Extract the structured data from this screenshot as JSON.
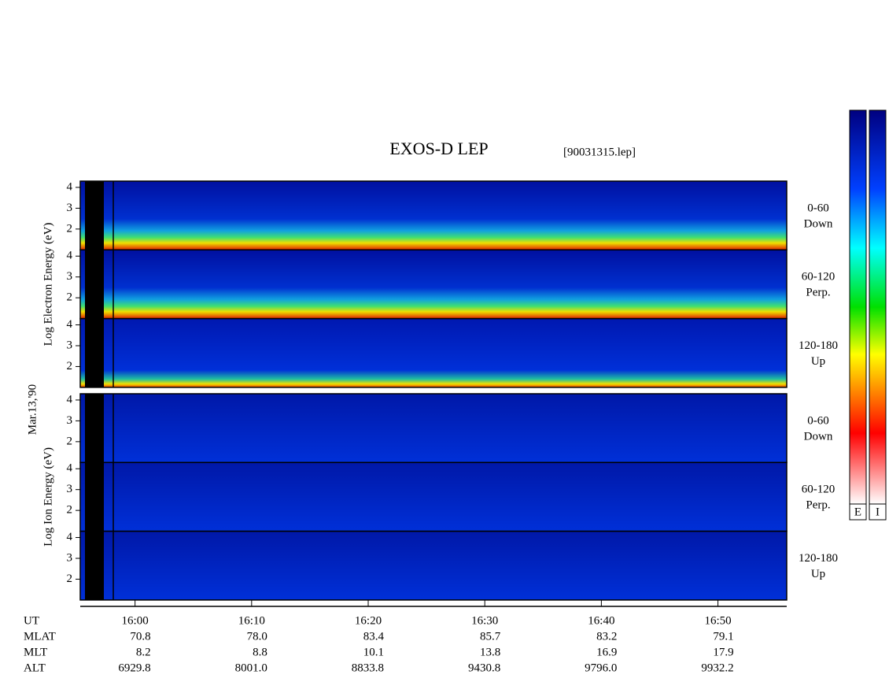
{
  "title": "EXOS-D LEP",
  "file": "[90031315.lep]",
  "date": "Mar.13,'90",
  "colorbars": [
    "E",
    "I"
  ],
  "chart_data": [
    {
      "type": "spectrogram",
      "ylabel": "Log  Electron  Energy (eV)",
      "panels": [
        {
          "label": [
            "0-60",
            "Down"
          ]
        },
        {
          "label": [
            "60-120",
            "Perp."
          ]
        },
        {
          "label": [
            "120-180",
            "Up"
          ]
        }
      ],
      "ylim": [
        1,
        4.3
      ],
      "yticks": [
        2,
        3,
        4
      ]
    },
    {
      "type": "spectrogram",
      "ylabel": "Log  Ion  Energy (eV)",
      "panels": [
        {
          "label": [
            "0-60",
            "Down"
          ]
        },
        {
          "label": [
            "60-120",
            "Perp."
          ]
        },
        {
          "label": [
            "120-180",
            "Up"
          ]
        }
      ],
      "ylim": [
        1,
        4.3
      ],
      "yticks": [
        2,
        3,
        4
      ]
    }
  ],
  "xlim": [
    955.3,
    1015.9
  ],
  "xticks": [
    {
      "value": 960,
      "label": "16:00"
    },
    {
      "value": 970,
      "label": "16:10"
    },
    {
      "value": 980,
      "label": "16:20"
    },
    {
      "value": 990,
      "label": "16:30"
    },
    {
      "value": 1000,
      "label": "16:40"
    },
    {
      "value": 1010,
      "label": "16:50"
    }
  ],
  "orbit_table": {
    "row_labels": [
      "UT",
      "MLAT",
      "MLT",
      "ALT"
    ],
    "rows": [
      [
        "70.8",
        "78.0",
        "83.4",
        "85.7",
        "83.2",
        "79.1"
      ],
      [
        "8.2",
        "8.8",
        "10.1",
        "13.8",
        "16.9",
        "17.9"
      ],
      [
        "6929.8",
        "8001.0",
        "8833.8",
        "9430.8",
        "9796.0",
        "9932.2"
      ]
    ]
  }
}
